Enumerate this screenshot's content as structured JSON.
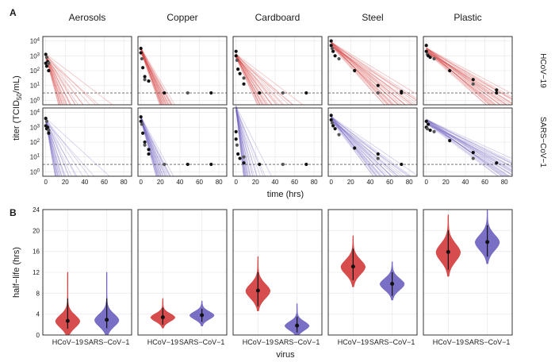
{
  "panel_labels": {
    "a": "A",
    "b": "B"
  },
  "colors": {
    "hcov19": "#d33a3a",
    "sars": "#6a5fbf",
    "grid": "#ebebeb",
    "frame": "#333333"
  },
  "chart_data": [
    {
      "type": "scatter",
      "panel": "A",
      "description_note": "titer decay over time with regression fan lines; points in black",
      "facet_columns": [
        "Aerosols",
        "Copper",
        "Cardboard",
        "Steel",
        "Plastic"
      ],
      "facet_rows": [
        "HCoV-19",
        "SARS-CoV-1"
      ],
      "facet_rows_display": [
        "HCoV−19",
        "SARS−CoV−1"
      ],
      "xlabel": "time (hrs)",
      "ylabel_parts": [
        "titer (TCID",
        "50",
        "/mL)"
      ],
      "xlim": [
        -3,
        88
      ],
      "ylim_log10": [
        -0.3,
        4.3
      ],
      "xticks": [
        0,
        20,
        40,
        60,
        80
      ],
      "yticks": [
        {
          "label": "10",
          "exp": "4",
          "value": 4
        },
        {
          "label": "10",
          "exp": "3",
          "value": 3
        },
        {
          "label": "10",
          "exp": "2",
          "value": 2
        },
        {
          "label": "10",
          "exp": "1",
          "value": 1
        },
        {
          "label": "10",
          "exp": "0",
          "value": 0
        }
      ],
      "detection_limit_log10": 0.5,
      "series": [
        {
          "row": 0,
          "col": 0,
          "start": 3.0,
          "slopes": [
            -0.25,
            -0.05
          ],
          "points": [
            [
              0,
              3.1
            ],
            [
              0,
              2.5
            ],
            [
              1,
              2.9
            ],
            [
              1,
              2.3
            ],
            [
              2,
              2.6
            ],
            [
              3,
              2.5
            ],
            [
              3,
              2.0
            ]
          ]
        },
        {
          "row": 0,
          "col": 1,
          "start": 3.4,
          "slopes": [
            -0.19,
            -0.11
          ],
          "points": [
            [
              0,
              3.5
            ],
            [
              0,
              3.2
            ],
            [
              1,
              2.8
            ],
            [
              2,
              2.2
            ],
            [
              4,
              1.6
            ],
            [
              4,
              1.4
            ],
            [
              8,
              1.3
            ],
            [
              24,
              0.5
            ],
            [
              48,
              0.5
            ],
            [
              72,
              0.5
            ]
          ]
        },
        {
          "row": 0,
          "col": 2,
          "start": 3.0,
          "slopes": [
            -0.15,
            -0.05
          ],
          "points": [
            [
              0,
              3.3
            ],
            [
              0,
              3.0
            ],
            [
              1,
              2.7
            ],
            [
              2,
              2.1
            ],
            [
              4,
              1.8
            ],
            [
              8,
              1.5
            ],
            [
              8,
              1.1
            ],
            [
              24,
              0.5
            ],
            [
              48,
              0.5
            ],
            [
              72,
              0.5
            ]
          ]
        },
        {
          "row": 0,
          "col": 3,
          "start": 3.8,
          "slopes": [
            -0.075,
            -0.04
          ],
          "points": [
            [
              0,
              4.0
            ],
            [
              0,
              3.7
            ],
            [
              1,
              3.5
            ],
            [
              2,
              3.3
            ],
            [
              4,
              3.0
            ],
            [
              8,
              2.8
            ],
            [
              24,
              2.0
            ],
            [
              48,
              1.0
            ],
            [
              48,
              0.5
            ],
            [
              72,
              0.6
            ],
            [
              72,
              0.5
            ]
          ]
        },
        {
          "row": 0,
          "col": 4,
          "start": 3.4,
          "slopes": [
            -0.06,
            -0.035
          ],
          "points": [
            [
              0,
              3.7
            ],
            [
              0,
              3.3
            ],
            [
              1,
              3.1
            ],
            [
              2,
              3.0
            ],
            [
              4,
              2.9
            ],
            [
              8,
              2.8
            ],
            [
              24,
              2.0
            ],
            [
              48,
              1.4
            ],
            [
              48,
              1.1
            ],
            [
              72,
              0.7
            ],
            [
              72,
              0.5
            ]
          ]
        },
        {
          "row": 1,
          "col": 0,
          "start": 3.5,
          "slopes": [
            -0.4,
            -0.06
          ],
          "points": [
            [
              0,
              3.6
            ],
            [
              0,
              3.1
            ],
            [
              1,
              3.4
            ],
            [
              1,
              2.9
            ],
            [
              2,
              3.0
            ],
            [
              3,
              2.8
            ],
            [
              3,
              2.6
            ]
          ]
        },
        {
          "row": 1,
          "col": 1,
          "start": 3.6,
          "slopes": [
            -0.25,
            -0.12
          ],
          "points": [
            [
              0,
              3.7
            ],
            [
              0,
              3.4
            ],
            [
              1,
              3.2
            ],
            [
              2,
              2.6
            ],
            [
              4,
              2.0
            ],
            [
              4,
              1.8
            ],
            [
              8,
              1.5
            ],
            [
              8,
              1.2
            ],
            [
              24,
              0.5
            ],
            [
              48,
              0.5
            ],
            [
              72,
              0.5
            ]
          ]
        },
        {
          "row": 1,
          "col": 2,
          "start": 4.3,
          "slopes": [
            -0.6,
            -0.13
          ],
          "points": [
            [
              0,
              2.7
            ],
            [
              0,
              2.2
            ],
            [
              1,
              1.8
            ],
            [
              2,
              1.2
            ],
            [
              4,
              0.9
            ],
            [
              8,
              1.0
            ],
            [
              8,
              0.6
            ],
            [
              24,
              0.5
            ],
            [
              48,
              0.5
            ],
            [
              72,
              0.5
            ]
          ]
        },
        {
          "row": 1,
          "col": 3,
          "start": 3.6,
          "slopes": [
            -0.09,
            -0.045
          ],
          "points": [
            [
              0,
              3.8
            ],
            [
              0,
              3.5
            ],
            [
              1,
              3.3
            ],
            [
              2,
              3.1
            ],
            [
              4,
              2.9
            ],
            [
              8,
              2.5
            ],
            [
              24,
              1.6
            ],
            [
              48,
              1.2
            ],
            [
              48,
              0.9
            ],
            [
              72,
              0.5
            ]
          ]
        },
        {
          "row": 1,
          "col": 4,
          "start": 3.4,
          "slopes": [
            -0.05,
            -0.03
          ],
          "points": [
            [
              0,
              3.4
            ],
            [
              0,
              3.0
            ],
            [
              1,
              2.9
            ],
            [
              2,
              3.2
            ],
            [
              4,
              2.8
            ],
            [
              8,
              2.7
            ],
            [
              24,
              2.1
            ],
            [
              48,
              1.3
            ],
            [
              48,
              0.9
            ],
            [
              72,
              0.6
            ]
          ]
        }
      ]
    },
    {
      "type": "violin",
      "panel": "B",
      "facet_columns": [
        "Aerosols",
        "Copper",
        "Cardboard",
        "Steel",
        "Plastic"
      ],
      "categories": [
        "HCoV−19",
        "SARS−CoV−1"
      ],
      "xlabel": "virus",
      "ylabel": "half−life (hrs)",
      "ylim": [
        0,
        24
      ],
      "yticks": [
        0,
        4,
        8,
        12,
        16,
        20,
        24
      ],
      "violins": [
        {
          "col": 0,
          "cat": 0,
          "median": 2.7,
          "ci": [
            1.2,
            7.0
          ],
          "spread": 1.3,
          "tail": 12.0
        },
        {
          "col": 0,
          "cat": 1,
          "median": 2.9,
          "ci": [
            1.3,
            7.0
          ],
          "spread": 1.3,
          "tail": 12.0
        },
        {
          "col": 1,
          "cat": 0,
          "median": 3.4,
          "ci": [
            2.0,
            5.2
          ],
          "spread": 0.8,
          "tail": 7.0
        },
        {
          "col": 1,
          "cat": 1,
          "median": 3.8,
          "ci": [
            2.5,
            5.0
          ],
          "spread": 0.8,
          "tail": 6.5
        },
        {
          "col": 2,
          "cat": 0,
          "median": 8.5,
          "ci": [
            5.5,
            12.0
          ],
          "spread": 1.5,
          "tail": 15.0
        },
        {
          "col": 2,
          "cat": 1,
          "median": 1.8,
          "ci": [
            0.5,
            3.5
          ],
          "spread": 0.9,
          "tail": 6.0
        },
        {
          "col": 3,
          "cat": 0,
          "median": 13.1,
          "ci": [
            10.5,
            16.5
          ],
          "spread": 1.5,
          "tail": 19.0
        },
        {
          "col": 3,
          "cat": 1,
          "median": 9.8,
          "ci": [
            7.5,
            12.0
          ],
          "spread": 1.2,
          "tail": 14.0
        },
        {
          "col": 4,
          "cat": 0,
          "median": 15.9,
          "ci": [
            12.5,
            20.0
          ],
          "spread": 1.8,
          "tail": 23.0
        },
        {
          "col": 4,
          "cat": 1,
          "median": 17.8,
          "ci": [
            15.0,
            21.0
          ],
          "spread": 1.6,
          "tail": 24.0
        }
      ]
    }
  ]
}
